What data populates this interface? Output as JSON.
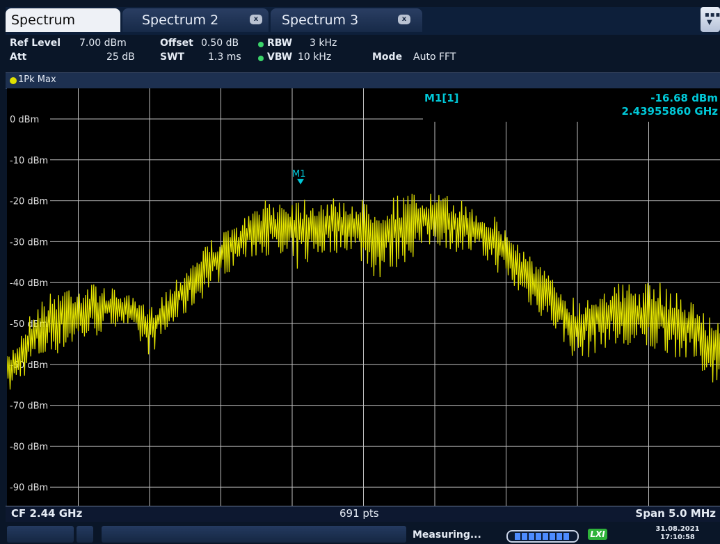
{
  "tabs": [
    {
      "label": "Spectrum",
      "active": true
    },
    {
      "label": "Spectrum 2",
      "active": false,
      "close": "x"
    },
    {
      "label": "Spectrum 3",
      "active": false,
      "close": "x"
    }
  ],
  "settings": {
    "ref_level_label": "Ref Level",
    "ref_level_value": "7.00 dBm",
    "offset_label": "Offset",
    "offset_value": "0.50 dB",
    "rbw_label": "RBW",
    "rbw_value": "3 kHz",
    "att_label": "Att",
    "att_value": "25 dB",
    "swt_label": "SWT",
    "swt_value": "1.3 ms",
    "vbw_label": "VBW",
    "vbw_value": "10 kHz",
    "mode_label": "Mode",
    "mode_value": "Auto FFT"
  },
  "trace_label": "1Pk Max",
  "marker": {
    "name": "M1",
    "readout_label": "M1[1]",
    "readout_level": "-16.68 dBm",
    "readout_freq": "2.43955860 GHz"
  },
  "info": {
    "cf": "CF 2.44 GHz",
    "pts": "691 pts",
    "span": "Span 5.0 MHz"
  },
  "status": {
    "measuring": "Measuring...",
    "lxi": "LXI",
    "date": "31.08.2021",
    "time": "17:10:58"
  },
  "colors": {
    "trace": "#e8e800",
    "marker": "#00c8d8",
    "grid": "#c0c0c0",
    "background": "#000000"
  },
  "chart_data": {
    "type": "line",
    "title": "",
    "xlabel": "",
    "ylabel": "",
    "y_tick_labels": [
      "0 dBm",
      "-10 dBm",
      "-20 dBm",
      "-30 dBm",
      "-40 dBm",
      "-50 dBm",
      "-60 dBm",
      "-70 dBm",
      "-80 dBm",
      "-90 dBm"
    ],
    "y_ticks": [
      0,
      -10,
      -20,
      -30,
      -40,
      -50,
      -60,
      -70,
      -80,
      -90
    ],
    "ylim": [
      -100,
      7
    ],
    "xlim": [
      2.4375,
      2.4425
    ],
    "x_unit": "GHz",
    "y_unit": "dBm",
    "grid": true,
    "series": [
      {
        "x": [
          2.4375,
          2.4377,
          2.4379,
          2.4381,
          2.4383,
          2.4385,
          2.4387,
          2.4389,
          2.4391,
          2.4393,
          2.4395,
          2.4397,
          2.4399,
          2.4401,
          2.4403,
          2.4405,
          2.4407,
          2.4409,
          2.4411,
          2.4413,
          2.4415,
          2.4417,
          2.4419,
          2.4421,
          2.4423,
          2.4425
        ],
        "upper": [
          -58,
          -45,
          -40,
          -40,
          -42,
          -46,
          -38,
          -30,
          -26,
          -20,
          -18,
          -19,
          -20,
          -19,
          -18,
          -18,
          -20,
          -23,
          -30,
          -38,
          -44,
          -40,
          -40,
          -40,
          -44,
          -50
        ],
        "lower": [
          -68,
          -60,
          -57,
          -54,
          -50,
          -58,
          -50,
          -43,
          -36,
          -33,
          -38,
          -34,
          -32,
          -40,
          -35,
          -31,
          -33,
          -36,
          -44,
          -50,
          -60,
          -56,
          -58,
          -57,
          -60,
          -66
        ]
      }
    ],
    "markers": [
      {
        "name": "M1",
        "x": 2.4395586,
        "y": -16.68
      }
    ]
  }
}
